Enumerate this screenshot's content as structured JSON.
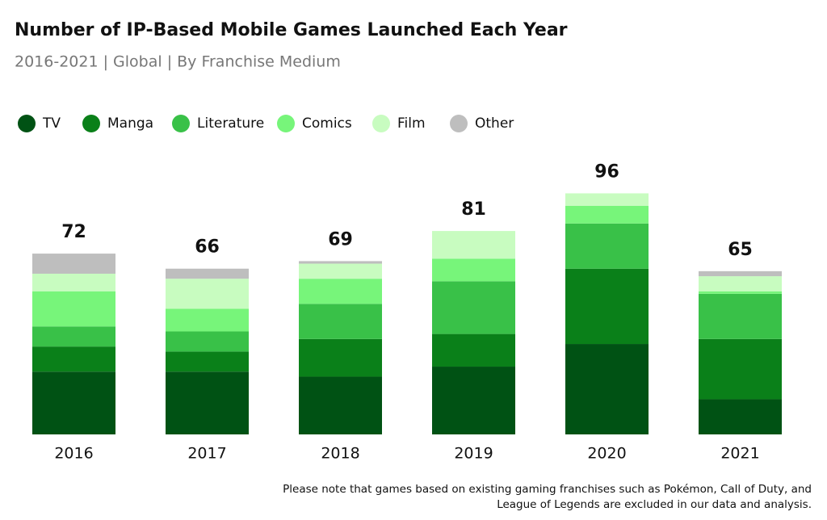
{
  "chart_data": {
    "type": "stacked-bar",
    "title": "Number of IP-Based Mobile Games Launched Each Year",
    "subtitle": "2016-2021 | Global | By Franchise Medium",
    "categories": [
      "2016",
      "2017",
      "2018",
      "2019",
      "2020",
      "2021"
    ],
    "series": [
      {
        "name": "TV",
        "color": "#005214",
        "values": [
          25,
          25,
          23,
          27,
          36,
          14
        ]
      },
      {
        "name": "Manga",
        "color": "#0a8019",
        "values": [
          10,
          8,
          15,
          13,
          30,
          24
        ]
      },
      {
        "name": "Literature",
        "color": "#39c148",
        "values": [
          8,
          8,
          14,
          21,
          18,
          18
        ]
      },
      {
        "name": "Comics",
        "color": "#77f57a",
        "values": [
          14,
          9,
          10,
          9,
          7,
          1
        ]
      },
      {
        "name": "Film",
        "color": "#c8fcc0",
        "values": [
          7,
          12,
          6,
          11,
          5,
          6
        ]
      },
      {
        "name": "Other",
        "color": "#bebebe",
        "values": [
          8,
          4,
          1,
          0,
          0,
          2
        ]
      }
    ],
    "totals": [
      72,
      66,
      69,
      81,
      96,
      65
    ],
    "note": [
      "Please note that games based on existing gaming franchises such as Pokémon, Call of Duty, and",
      "League of Legends are excluded in our data and analysis."
    ]
  }
}
